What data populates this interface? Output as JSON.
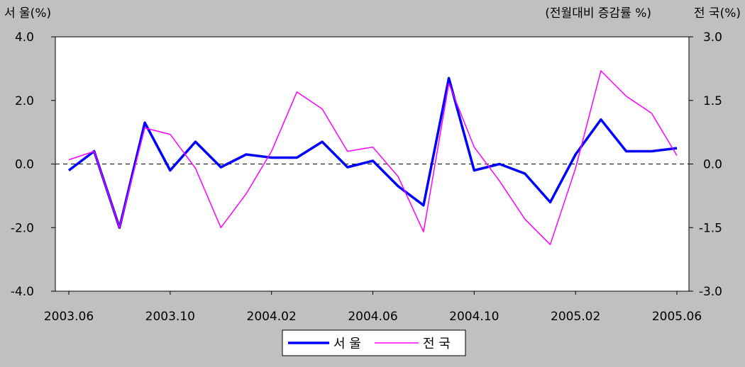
{
  "chart_data": {
    "type": "line",
    "left_axis_label": "서 울(%)",
    "right_axis_label": "전 국(%)",
    "subtitle": "(전월대비 증감률 %)",
    "x": [
      "2003.06",
      "2003.07",
      "2003.08",
      "2003.09",
      "2003.10",
      "2003.11",
      "2003.12",
      "2004.01",
      "2004.02",
      "2004.03",
      "2004.04",
      "2004.05",
      "2004.06",
      "2004.07",
      "2004.08",
      "2004.09",
      "2004.10",
      "2004.11",
      "2004.12",
      "2005.01",
      "2005.02",
      "2005.03",
      "2005.04",
      "2005.05",
      "2005.06"
    ],
    "x_tick_labels": [
      "2003.06",
      "2003.10",
      "2004.02",
      "2004.06",
      "2004.10",
      "2005.02",
      "2005.06"
    ],
    "left_axis": {
      "ylim": [
        -4.0,
        4.0
      ],
      "ticks": [
        "-4.0",
        "-2.0",
        "0.0",
        "2.0",
        "4.0"
      ]
    },
    "right_axis": {
      "ylim": [
        -3.0,
        3.0
      ],
      "ticks": [
        "-3.0",
        "-1.5",
        "0.0",
        "1.5",
        "3.0"
      ]
    },
    "grid": false,
    "reference_line": {
      "y": 0,
      "style": "dashed"
    },
    "legend_position": "bottom-center",
    "series": [
      {
        "name": "서 울",
        "axis": "left",
        "color": "#0000ff",
        "values": [
          -0.2,
          0.4,
          -2.0,
          1.3,
          -0.2,
          0.7,
          -0.1,
          0.3,
          0.2,
          0.2,
          0.7,
          -0.1,
          0.1,
          -0.7,
          -1.3,
          2.7,
          -0.2,
          0.0,
          -0.3,
          -1.2,
          0.3,
          1.4,
          0.4,
          0.4,
          0.5
        ]
      },
      {
        "name": "전 국",
        "axis": "right",
        "color": "#ff00ff",
        "values": [
          0.1,
          0.3,
          -1.5,
          0.85,
          0.7,
          -0.1,
          -1.5,
          -0.7,
          0.3,
          1.7,
          1.3,
          0.3,
          0.4,
          -0.3,
          -1.6,
          1.9,
          0.4,
          -0.4,
          -1.3,
          -1.9,
          -0.1,
          2.2,
          1.6,
          1.2,
          0.2
        ]
      }
    ]
  }
}
